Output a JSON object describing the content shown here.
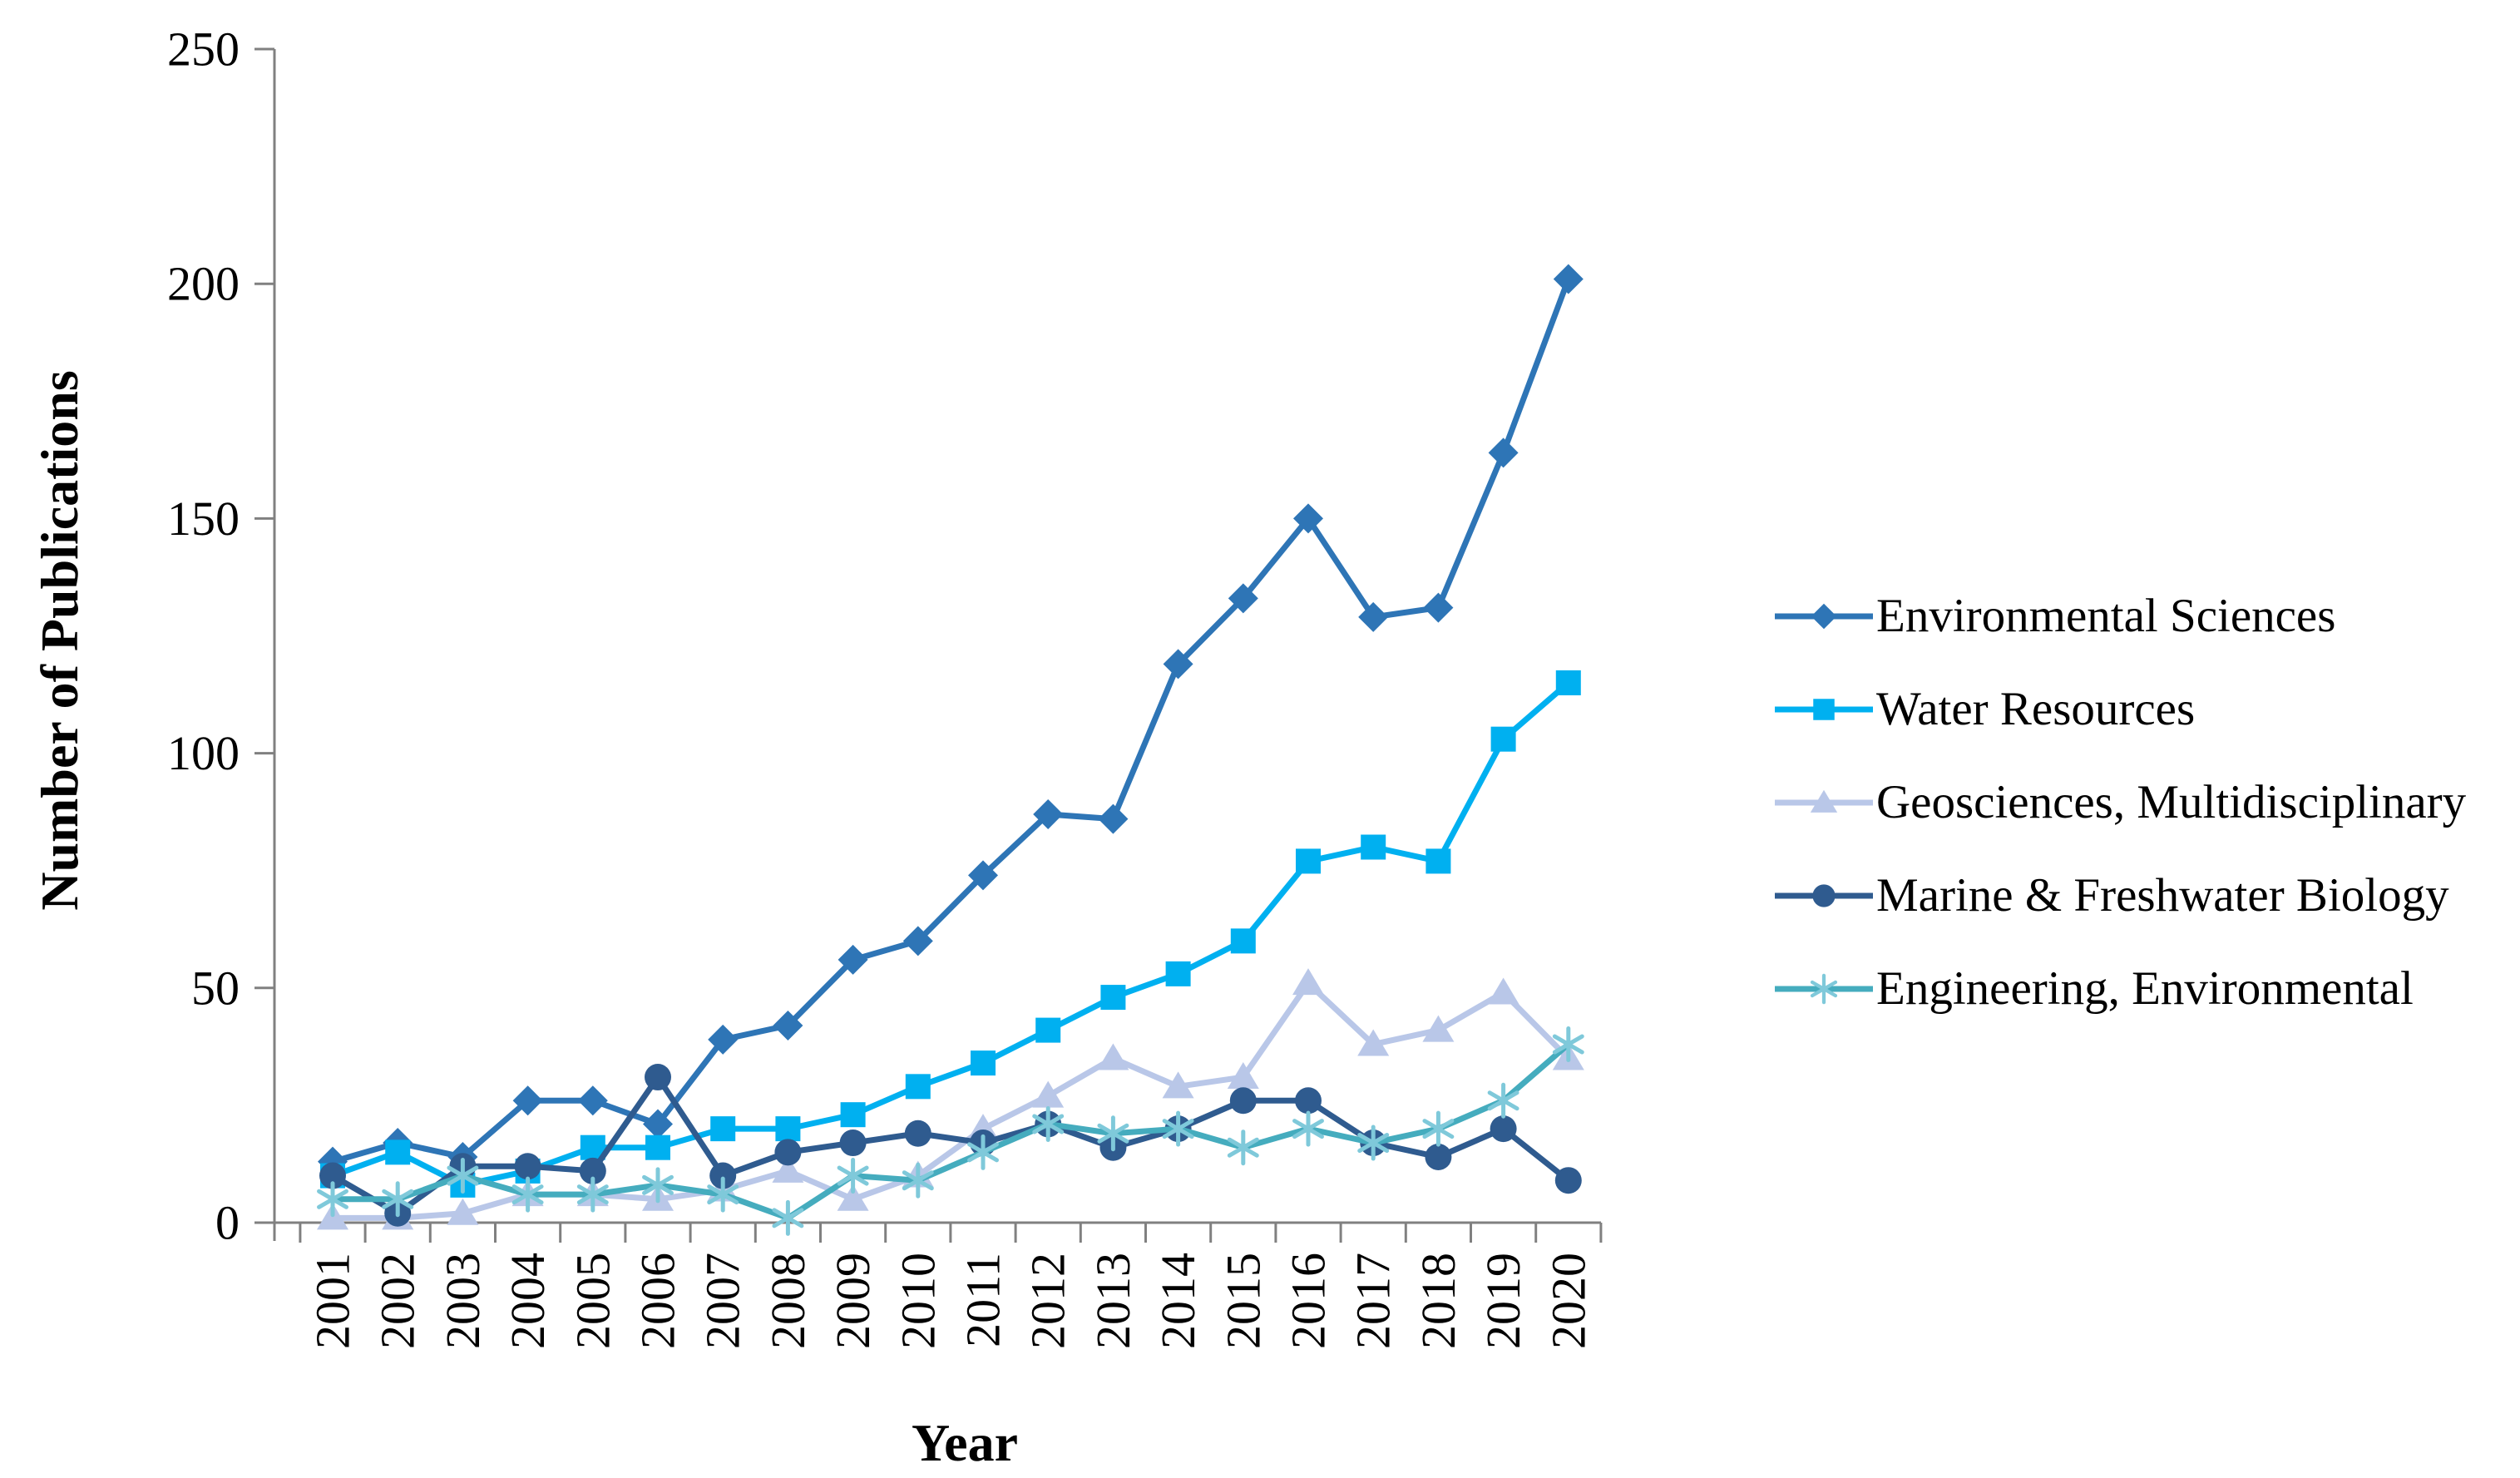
{
  "figure": {
    "y_axis_title": "Number of Publications",
    "x_axis_title": "Year"
  },
  "chart_data": {
    "type": "line",
    "title": "",
    "xlabel": "Year",
    "ylabel": "Number of Publications",
    "x": [
      "2001",
      "2002",
      "2003",
      "2004",
      "2005",
      "2006",
      "2007",
      "2008",
      "2009",
      "2010",
      "2011",
      "2012",
      "2013",
      "2014",
      "2015",
      "2016",
      "2017",
      "2018",
      "2019",
      "2020"
    ],
    "ylim": [
      0,
      250
    ],
    "y_ticks": [
      0,
      50,
      100,
      150,
      200,
      250
    ],
    "grid": false,
    "legend_position": "right",
    "axis_color": "#808080",
    "series": [
      {
        "name": "Environmental Sciences",
        "marker": "diamond",
        "color": "#2E75B6",
        "values": [
          13,
          17,
          14,
          26,
          26,
          21,
          39,
          42,
          56,
          60,
          74,
          87,
          86,
          119,
          133,
          150,
          129,
          131,
          164,
          201
        ]
      },
      {
        "name": "Water Resources",
        "marker": "square",
        "color": "#00B0F0",
        "values": [
          10,
          15,
          8,
          11,
          16,
          16,
          20,
          20,
          23,
          29,
          34,
          41,
          48,
          53,
          60,
          77,
          80,
          77,
          103,
          115
        ]
      },
      {
        "name": "Geosciences, Multidisciplinary",
        "marker": "triangle",
        "color": "#B9C7E8",
        "values": [
          1,
          1,
          2,
          6,
          6,
          5,
          7,
          11,
          5,
          10,
          20,
          27,
          35,
          29,
          31,
          51,
          38,
          41,
          49,
          35
        ]
      },
      {
        "name": "Marine & Freshwater Biology",
        "marker": "circle",
        "color": "#2F5B8F",
        "values": [
          10,
          2,
          12,
          12,
          11,
          31,
          10,
          15,
          17,
          19,
          17,
          21,
          16,
          20,
          26,
          26,
          17,
          14,
          20,
          9
        ]
      },
      {
        "name": "Engineering, Environmental",
        "marker": "asterisk",
        "color": "#45ACBE",
        "marker_color": "#7FC9DA",
        "values": [
          5,
          5,
          10,
          6,
          6,
          8,
          6,
          1,
          10,
          9,
          15,
          21,
          19,
          20,
          16,
          20,
          17,
          20,
          26,
          38
        ]
      }
    ]
  }
}
